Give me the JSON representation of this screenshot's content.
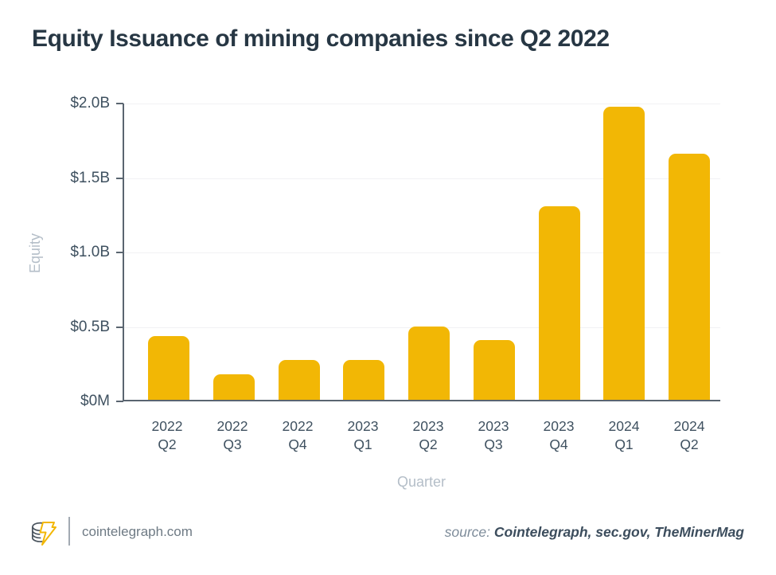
{
  "title": "Equity Issuance of mining companies since Q2 2022",
  "chart_data": {
    "type": "bar",
    "title": "Equity Issuance of mining companies since Q2 2022",
    "categories": [
      "2022 Q2",
      "2022 Q3",
      "2022 Q4",
      "2023 Q1",
      "2023 Q2",
      "2023 Q3",
      "2023 Q4",
      "2024 Q1",
      "2024 Q2"
    ],
    "values_billions": [
      0.43,
      0.17,
      0.27,
      0.27,
      0.49,
      0.4,
      1.3,
      1.97,
      1.65
    ],
    "xlabel": "Quarter",
    "ylabel": "Equity",
    "ylim": [
      0,
      2.0
    ],
    "yticks": [
      {
        "value": 2.0,
        "label": "$2.0B"
      },
      {
        "value": 1.5,
        "label": "$1.5B"
      },
      {
        "value": 1.0,
        "label": "$1.0B"
      },
      {
        "value": 0.5,
        "label": "$0.5B"
      },
      {
        "value": 0.0,
        "label": "$0M"
      }
    ],
    "bar_color": "#F2B705",
    "grid": true,
    "legend": false
  },
  "colors": {
    "title_text": "#273744",
    "axis_line": "#5a6570",
    "tick_text": "#3f5160",
    "muted_text": "#b4bec8",
    "gridline": "#f1f1f4",
    "accent_yellow": "#F2B705"
  },
  "footer": {
    "brand": "cointelegraph.com",
    "logo_icon": "cointelegraph-coin-bolt-logo",
    "source_prefix": "source:",
    "source_text": "Cointelegraph, sec.gov, TheMinerMag"
  }
}
